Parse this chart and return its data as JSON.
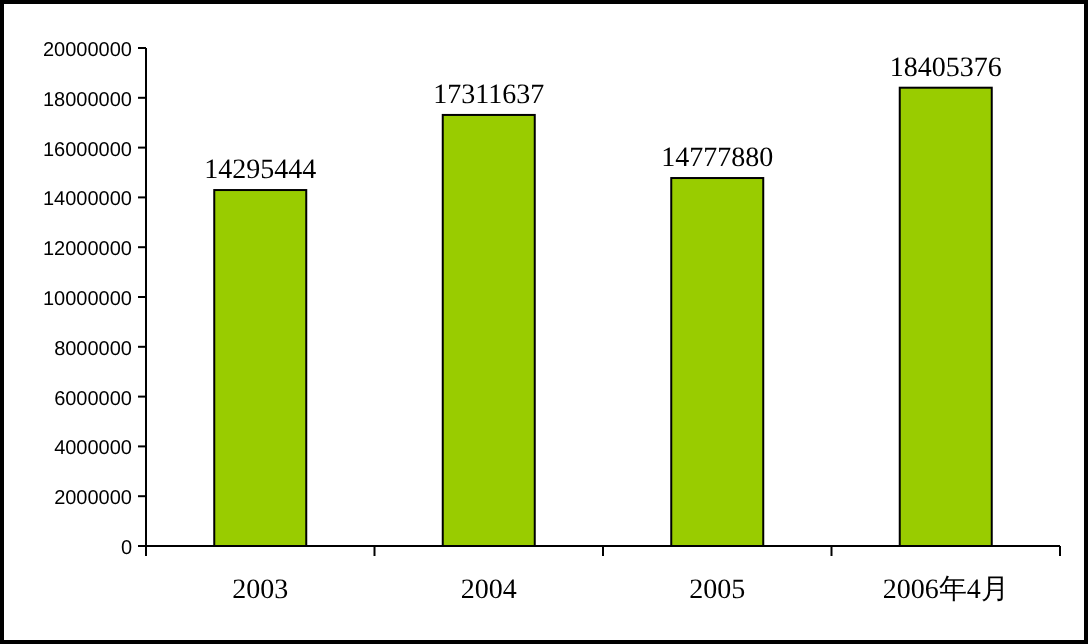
{
  "chart_data": {
    "type": "bar",
    "categories": [
      "2003",
      "2004",
      "2005",
      "2006年4月"
    ],
    "values": [
      14295444,
      17311637,
      14777880,
      18405376
    ],
    "color": "#99cc00",
    "data_labels": true,
    "ylim": [
      0,
      20000000
    ],
    "yticks": [
      0,
      2000000,
      4000000,
      6000000,
      8000000,
      10000000,
      12000000,
      14000000,
      16000000,
      18000000,
      20000000
    ],
    "grid": false
  }
}
